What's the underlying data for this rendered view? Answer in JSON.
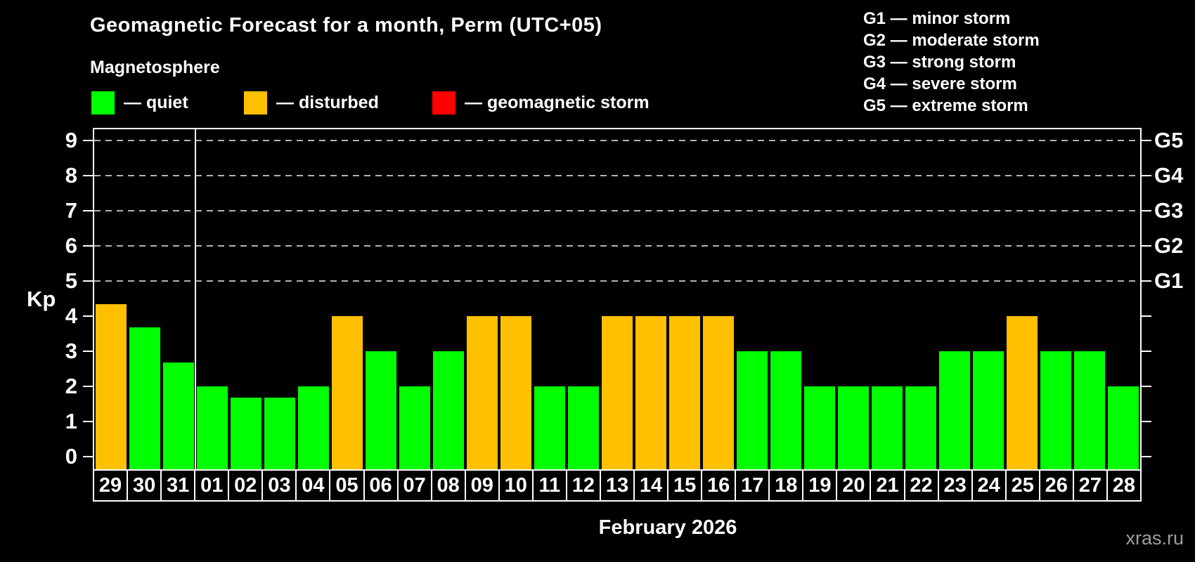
{
  "header": {
    "title": "Geomagnetic Forecast for a month, Perm (UTC+05)",
    "subtitle": "Magnetosphere"
  },
  "legend": {
    "items": [
      {
        "key": "quiet",
        "label": "— quiet",
        "color": "#00ff00"
      },
      {
        "key": "disturbed",
        "label": "— disturbed",
        "color": "#ffc000"
      },
      {
        "key": "storm",
        "label": "— geomagnetic storm",
        "color": "#ff0000"
      }
    ]
  },
  "g_scale_legend": {
    "items": [
      "G1 — minor storm",
      "G2 — moderate storm",
      "G3 — strong storm",
      "G4 — severe storm",
      "G5 — extreme storm"
    ]
  },
  "axes": {
    "y_label": "Kp",
    "y_ticks": [
      0,
      1,
      2,
      3,
      4,
      5,
      6,
      7,
      8,
      9
    ],
    "right_labels": [
      {
        "text": "G1",
        "kp": 5
      },
      {
        "text": "G2",
        "kp": 6
      },
      {
        "text": "G3",
        "kp": 7
      },
      {
        "text": "G4",
        "kp": 8
      },
      {
        "text": "G5",
        "kp": 9
      }
    ],
    "x_label": "February 2026"
  },
  "watermark": "xras.ru",
  "colors": {
    "quiet": "#00ff00",
    "disturbed": "#ffc000",
    "storm": "#ff0000",
    "background": "#000000",
    "axis": "#ffffff",
    "grid": "#b3b3b3",
    "watermark": "#9e9e9e"
  },
  "chart_data": {
    "type": "bar",
    "title": "Geomagnetic Forecast for a month, Perm (UTC+05)",
    "ylabel": "Kp",
    "xlabel": "February 2026",
    "ylim": [
      0,
      9.4
    ],
    "grid": "dashed horizontal at G-storm levels",
    "gridlines_at_kp": [
      5,
      6,
      7,
      8,
      9
    ],
    "legend_position": "top",
    "categories": [
      "29",
      "30",
      "31",
      "01",
      "02",
      "03",
      "04",
      "05",
      "06",
      "07",
      "08",
      "09",
      "10",
      "11",
      "12",
      "13",
      "14",
      "15",
      "16",
      "17",
      "18",
      "19",
      "20",
      "21",
      "22",
      "23",
      "24",
      "25",
      "26",
      "27",
      "28"
    ],
    "values": [
      4.33,
      3.67,
      2.67,
      2,
      1.67,
      1.67,
      2,
      4,
      3,
      2,
      3,
      4,
      4,
      2,
      2,
      4,
      4,
      4,
      4,
      3,
      3,
      2,
      2,
      2,
      2,
      3,
      3,
      4,
      3,
      3,
      2
    ],
    "statuses": [
      "disturbed",
      "quiet",
      "quiet",
      "quiet",
      "quiet",
      "quiet",
      "quiet",
      "disturbed",
      "quiet",
      "quiet",
      "quiet",
      "disturbed",
      "disturbed",
      "quiet",
      "quiet",
      "disturbed",
      "disturbed",
      "disturbed",
      "disturbed",
      "quiet",
      "quiet",
      "quiet",
      "quiet",
      "quiet",
      "quiet",
      "quiet",
      "quiet",
      "disturbed",
      "quiet",
      "quiet",
      "quiet"
    ],
    "month_separator_after_index": 2
  }
}
